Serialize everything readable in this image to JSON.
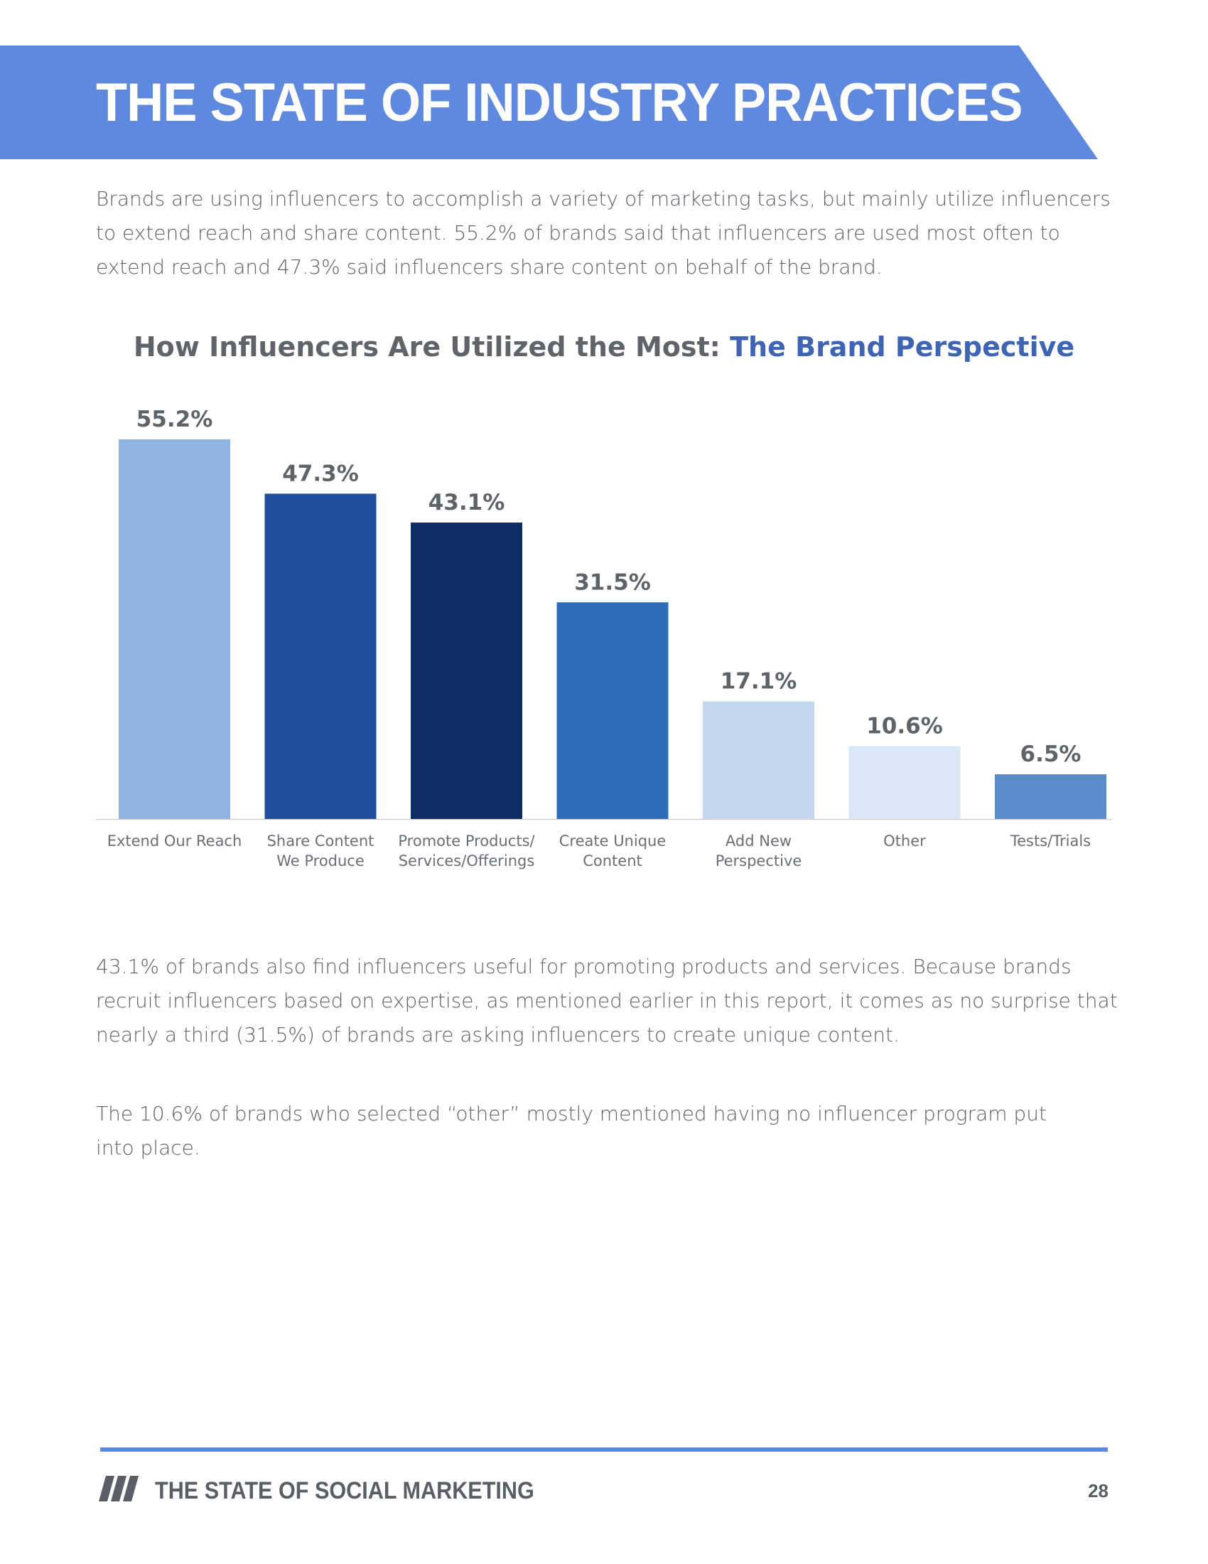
{
  "header": {
    "title": "THE STATE OF INDUSTRY PRACTICES"
  },
  "intro": "Brands are using influencers to accomplish a variety of marketing tasks, but mainly utilize influencers to extend reach and share content. 55.2% of brands said that influencers are used most often to extend reach and 47.3% said influencers share content on behalf of the brand.",
  "chart_title": {
    "lead": "How Influencers Are Utilized the Most: ",
    "accent": "The Brand Perspective"
  },
  "chart_data": {
    "type": "bar",
    "title": "How Influencers Are Utilized the Most: The Brand Perspective",
    "categories": [
      [
        "Extend Our Reach"
      ],
      [
        "Share Content",
        "We Produce"
      ],
      [
        "Promote Products/",
        "Services/Offerings"
      ],
      [
        "Create Unique",
        "Content"
      ],
      [
        "Add New",
        "Perspective"
      ],
      [
        "Other"
      ],
      [
        "Tests/Trials"
      ]
    ],
    "values": [
      55.2,
      47.3,
      43.1,
      31.5,
      17.1,
      10.6,
      6.5
    ],
    "value_labels": [
      "55.2%",
      "47.3%",
      "43.1%",
      "31.5%",
      "17.1%",
      "10.6%",
      "6.5%"
    ],
    "bar_colors": [
      "#8fb4e2",
      "#1f4e9a",
      "#0e2d66",
      "#2c6fb8",
      "#c4d7ef",
      "#dbe7f6",
      "#5a8ccb"
    ],
    "label_color": "#5e6269",
    "ylim": [
      0,
      55.2
    ],
    "grid": false,
    "legend": "none"
  },
  "body": {
    "p2": "43.1% of brands also find influencers useful for promoting products and services. Because brands recruit influencers based on expertise, as mentioned earlier in this report, it comes as no surprise that nearly a third (31.5%) of brands are asking influencers to create unique content.",
    "p3": "The 10.6% of brands who selected “other” mostly mentioned having no influencer program put into place."
  },
  "footer": {
    "title": "THE STATE OF SOCIAL MARKETING",
    "page": "28",
    "accent": "#5f88df"
  }
}
